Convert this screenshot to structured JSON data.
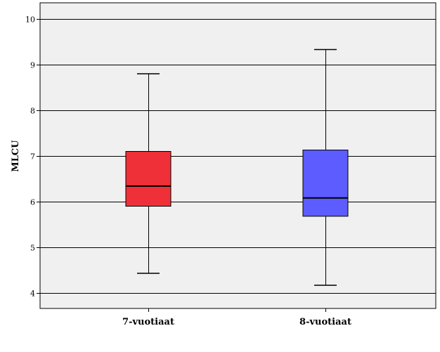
{
  "chart_data": {
    "type": "boxplot",
    "title": "",
    "xlabel": "",
    "ylabel": "MLCU",
    "ylim": [
      3.8,
      10.3
    ],
    "yticks": [
      4,
      5,
      6,
      7,
      8,
      9,
      10
    ],
    "grid": true,
    "categories": [
      "7-vuotiaat",
      "8-vuotiaat"
    ],
    "boxes": [
      {
        "category": "7-vuotiaat",
        "min": 4.43,
        "q1": 5.9,
        "median": 6.34,
        "q3": 7.1,
        "max": 8.8,
        "color": "#f03038"
      },
      {
        "category": "8-vuotiaat",
        "min": 4.17,
        "q1": 5.68,
        "median": 6.08,
        "q3": 7.13,
        "max": 9.33,
        "color": "#5c5cff"
      }
    ]
  },
  "colors": {
    "plot_background": "#f0f0f0",
    "gridline": "#000000"
  }
}
